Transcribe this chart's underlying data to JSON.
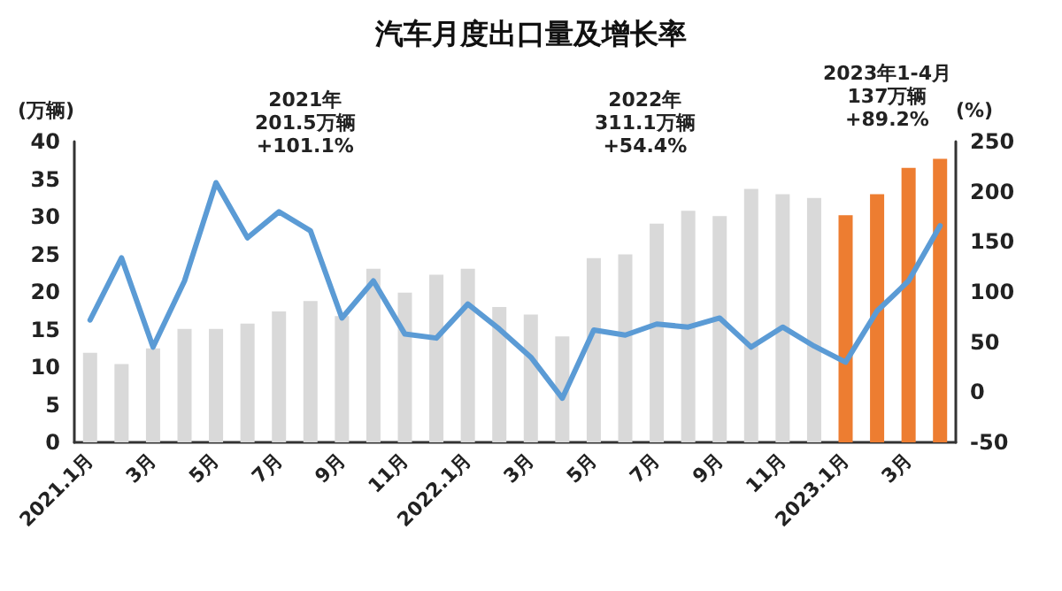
{
  "chart_data": {
    "type": "bar",
    "title": "汽车月度出口量及增长率",
    "ylabel": "(万辆)",
    "y2label": "(%)",
    "categories": [
      "2021.1月",
      null,
      "3月",
      null,
      "5月",
      null,
      "7月",
      null,
      "9月",
      null,
      "11月",
      null,
      "2022.1月",
      null,
      "3月",
      null,
      "5月",
      null,
      "7月",
      null,
      "9月",
      null,
      "11月",
      null,
      "2023.1月",
      null,
      "3月",
      null
    ],
    "series": [
      {
        "colors": [
          "#d9d9d9",
          "#d9d9d9",
          "#d9d9d9",
          "#d9d9d9",
          "#d9d9d9",
          "#d9d9d9",
          "#d9d9d9",
          "#d9d9d9",
          "#d9d9d9",
          "#d9d9d9",
          "#d9d9d9",
          "#d9d9d9",
          "#d9d9d9",
          "#d9d9d9",
          "#d9d9d9",
          "#d9d9d9",
          "#d9d9d9",
          "#d9d9d9",
          "#d9d9d9",
          "#d9d9d9",
          "#d9d9d9",
          "#d9d9d9",
          "#d9d9d9",
          "#d9d9d9",
          "#ed7d31",
          "#ed7d31",
          "#ed7d31",
          "#ed7d31"
        ],
        "values": [
          11.9,
          10.4,
          12.5,
          15.1,
          15.1,
          15.8,
          17.4,
          18.8,
          16.8,
          23.1,
          19.9,
          22.3,
          23.1,
          18.0,
          17.0,
          14.1,
          24.5,
          25.0,
          29.1,
          30.8,
          30.1,
          33.7,
          33.0,
          32.5,
          30.2,
          33.0,
          36.5,
          37.7
        ]
      },
      {
        "type": "line",
        "axis": "y2",
        "color": "#5b9bd5",
        "values": [
          72,
          134,
          45,
          111,
          209,
          154,
          180,
          161,
          74,
          111,
          58,
          54,
          88,
          63,
          35,
          -6,
          62,
          57,
          68,
          65,
          74,
          45,
          65,
          46,
          30,
          81,
          111,
          166
        ]
      }
    ],
    "ylim": [
      0,
      40
    ],
    "yticks": [
      0,
      5,
      10,
      15,
      20,
      25,
      30,
      35,
      40
    ],
    "y2lim": [
      -50,
      250
    ],
    "y2ticks": [
      -50,
      0,
      50,
      100,
      150,
      200,
      250
    ],
    "annotations": [
      "2021年\n201.5万辆\n+101.1%",
      "2022年\n311.1万辆\n+54.4%",
      "2023年1-4月\n137万辆\n+89.2%"
    ],
    "grid": false,
    "marker": "none",
    "line_style": "solid"
  }
}
